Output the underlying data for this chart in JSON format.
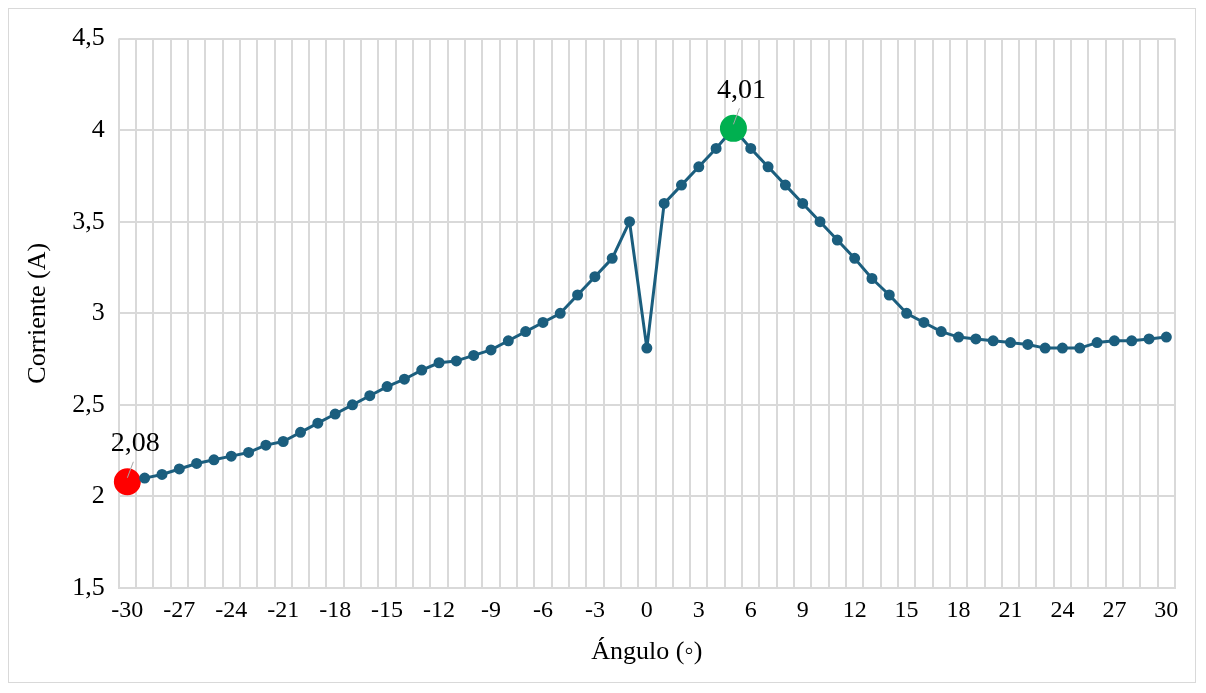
{
  "chart_data": {
    "type": "line",
    "xlabel": "Ángulo (◦)",
    "ylabel": "Corriente (A)",
    "categories": [
      "-30",
      null,
      null,
      "-27",
      null,
      null,
      "-24",
      null,
      null,
      "-21",
      null,
      null,
      "-18",
      null,
      null,
      "-15",
      null,
      null,
      "-12",
      null,
      null,
      "-9",
      null,
      null,
      "-6",
      null,
      null,
      "-3",
      null,
      null,
      "0",
      null,
      null,
      "3",
      null,
      null,
      "6",
      null,
      null,
      "9",
      null,
      null,
      "12",
      null,
      null,
      "15",
      null,
      null,
      "18",
      null,
      null,
      "21",
      null,
      null,
      "24",
      null,
      null,
      "27",
      null,
      null,
      "30"
    ],
    "series": [
      {
        "color": "#1b5e7e",
        "values": [
          2.08,
          2.1,
          2.12,
          2.15,
          2.18,
          2.2,
          2.22,
          2.24,
          2.28,
          2.3,
          2.35,
          2.4,
          2.45,
          2.5,
          2.55,
          2.6,
          2.64,
          2.69,
          2.73,
          2.74,
          2.77,
          2.8,
          2.85,
          2.9,
          2.95,
          3.0,
          3.1,
          3.2,
          3.3,
          3.5,
          2.81,
          3.6,
          3.7,
          3.8,
          3.9,
          4.01,
          3.9,
          3.8,
          3.7,
          3.6,
          3.5,
          3.4,
          3.3,
          3.19,
          3.1,
          3.0,
          2.95,
          2.9,
          2.87,
          2.86,
          2.85,
          2.84,
          2.83,
          2.81,
          2.81,
          2.81,
          2.84,
          2.85,
          2.85,
          2.86,
          2.87
        ],
        "colors": [
          "#ff0000",
          "#1b5e7e",
          "#1b5e7e",
          "#1b5e7e",
          "#1b5e7e",
          "#1b5e7e",
          "#1b5e7e",
          "#1b5e7e",
          "#1b5e7e",
          "#1b5e7e",
          "#1b5e7e",
          "#1b5e7e",
          "#1b5e7e",
          "#1b5e7e",
          "#1b5e7e",
          "#1b5e7e",
          "#1b5e7e",
          "#1b5e7e",
          "#1b5e7e",
          "#1b5e7e",
          "#1b5e7e",
          "#1b5e7e",
          "#1b5e7e",
          "#1b5e7e",
          "#1b5e7e",
          "#1b5e7e",
          "#1b5e7e",
          "#1b5e7e",
          "#1b5e7e",
          "#1b5e7e",
          "#1b5e7e",
          "#1b5e7e",
          "#1b5e7e",
          "#1b5e7e",
          "#1b5e7e",
          "#00b050",
          "#1b5e7e",
          "#1b5e7e",
          "#1b5e7e",
          "#1b5e7e",
          "#1b5e7e",
          "#1b5e7e",
          "#1b5e7e",
          "#1b5e7e",
          "#1b5e7e",
          "#1b5e7e",
          "#1b5e7e",
          "#1b5e7e",
          "#1b5e7e",
          "#1b5e7e",
          "#1b5e7e",
          "#1b5e7e",
          "#1b5e7e",
          "#1b5e7e",
          "#1b5e7e",
          "#1b5e7e",
          "#1b5e7e",
          "#1b5e7e",
          "#1b5e7e",
          "#1b5e7e",
          "#1b5e7e"
        ],
        "value_labels": [
          "2,08",
          null,
          null,
          null,
          null,
          null,
          null,
          null,
          null,
          null,
          null,
          null,
          null,
          null,
          null,
          null,
          null,
          null,
          null,
          null,
          null,
          null,
          null,
          null,
          null,
          null,
          null,
          null,
          null,
          null,
          null,
          null,
          null,
          null,
          null,
          "4,01",
          null,
          null,
          null,
          null,
          null,
          null,
          null,
          null,
          null,
          null,
          null,
          null,
          null,
          null,
          null,
          null,
          null,
          null,
          null,
          null,
          null,
          null,
          null,
          null,
          null
        ]
      }
    ],
    "ylim": [
      1.5,
      4.5
    ],
    "yticks": [
      {
        "value": 1.5,
        "label": "1,5"
      },
      2,
      {
        "value": 2.5,
        "label": "2,5"
      },
      3,
      {
        "value": 3.5,
        "label": "3,5"
      },
      4,
      {
        "value": 4.5,
        "label": "4,5"
      }
    ],
    "grid": true,
    "marker": "circle",
    "line_style": "solid",
    "legend": false
  }
}
